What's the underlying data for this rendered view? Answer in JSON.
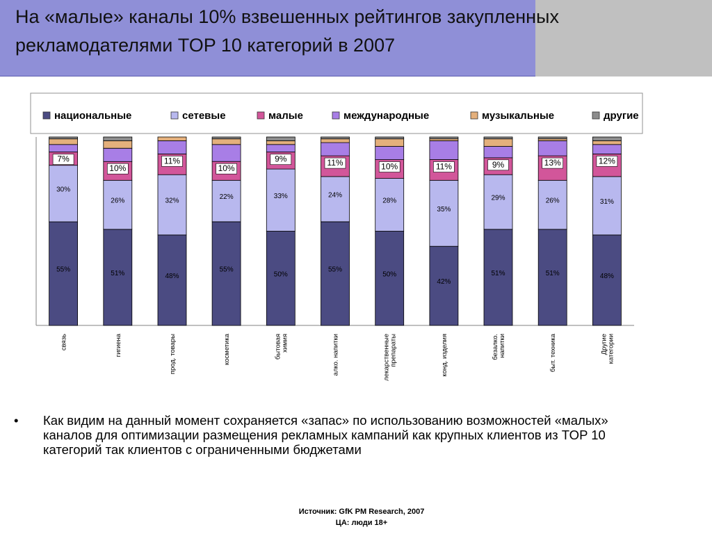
{
  "title": "На «малые» каналы 10% взвешенных рейтингов закупленных рекламодателями TOP 10 категорий в 2007",
  "bullet": {
    "marker": "•",
    "text": "Как видим на данный момент сохраняется «запас» по использованию возможностей «малых» каналов для оптимизации размещения рекламных кампаний как крупных клиентов из TOP 10 категорий так клиентов с ограниченными бюджетами"
  },
  "source": {
    "line1": "Источник: GfK PM Research, 2007",
    "line2": "ЦА: люди 18+"
  },
  "chart_data": {
    "type": "bar",
    "stacked": true,
    "percent_stacked": true,
    "legend_position": "top",
    "categories": [
      "связь",
      "гигиена",
      "прод. товары",
      "косметика",
      "бытовая химия",
      "алко. напитки",
      "лекарственные препараты",
      "конд. изделия",
      "безалко. напитки",
      "быт. техника",
      "Другие категории"
    ],
    "category_label_lines": [
      [
        "связь"
      ],
      [
        "гигиена"
      ],
      [
        "прод. товары"
      ],
      [
        "косметика"
      ],
      [
        "бытовая",
        "химия"
      ],
      [
        "алко. напитки"
      ],
      [
        "лекарственные",
        "препараты"
      ],
      [
        "конд. изделия"
      ],
      [
        "безалко.",
        "напитки"
      ],
      [
        "быт. техника"
      ],
      [
        "Другие",
        "категории"
      ]
    ],
    "series": [
      {
        "name": "национальные",
        "color": "#4b4b82",
        "values": [
          55,
          51,
          48,
          55,
          50,
          55,
          50,
          42,
          51,
          51,
          48
        ],
        "labels": [
          "55%",
          "51%",
          "48%",
          "55%",
          "50%",
          "55%",
          "50%",
          "42%",
          "51%",
          "51%",
          "48%"
        ]
      },
      {
        "name": "сетевые",
        "color": "#b8b8ee",
        "values": [
          30,
          26,
          32,
          22,
          33,
          24,
          28,
          35,
          29,
          26,
          31
        ],
        "labels": [
          "30%",
          "26%",
          "32%",
          "22%",
          "33%",
          "24%",
          "28%",
          "35%",
          "29%",
          "26%",
          "31%"
        ]
      },
      {
        "name": "малые",
        "color": "#d2569a",
        "values": [
          7,
          10,
          11,
          10,
          9,
          11,
          10,
          11,
          9,
          13,
          12
        ],
        "labels": [
          "7%",
          "10%",
          "11%",
          "10%",
          "9%",
          "11%",
          "10%",
          "11%",
          "9%",
          "13%",
          "12%"
        ]
      },
      {
        "name": "международные",
        "color": "#a87ee6",
        "values": [
          4,
          7,
          7,
          9,
          4,
          7,
          7,
          10,
          6,
          8,
          5
        ],
        "labels": [
          "",
          "",
          "",
          "",
          "",
          "",
          "",
          "",
          "",
          "",
          ""
        ]
      },
      {
        "name": "музыкальные",
        "color": "#e4b07c",
        "values": [
          3,
          4,
          2,
          3,
          2,
          2,
          4,
          1,
          4,
          1,
          2
        ],
        "labels": [
          "",
          "",
          "",
          "",
          "",
          "",
          "",
          "",
          "",
          "",
          ""
        ]
      },
      {
        "name": "другие",
        "color": "#8c8c8c",
        "values": [
          1,
          2,
          0,
          1,
          2,
          1,
          1,
          1,
          1,
          1,
          2
        ],
        "labels": [
          "",
          "",
          "",
          "",
          "",
          "",
          "",
          "",
          "",
          "",
          ""
        ]
      }
    ],
    "ylim": [
      0,
      100
    ]
  }
}
